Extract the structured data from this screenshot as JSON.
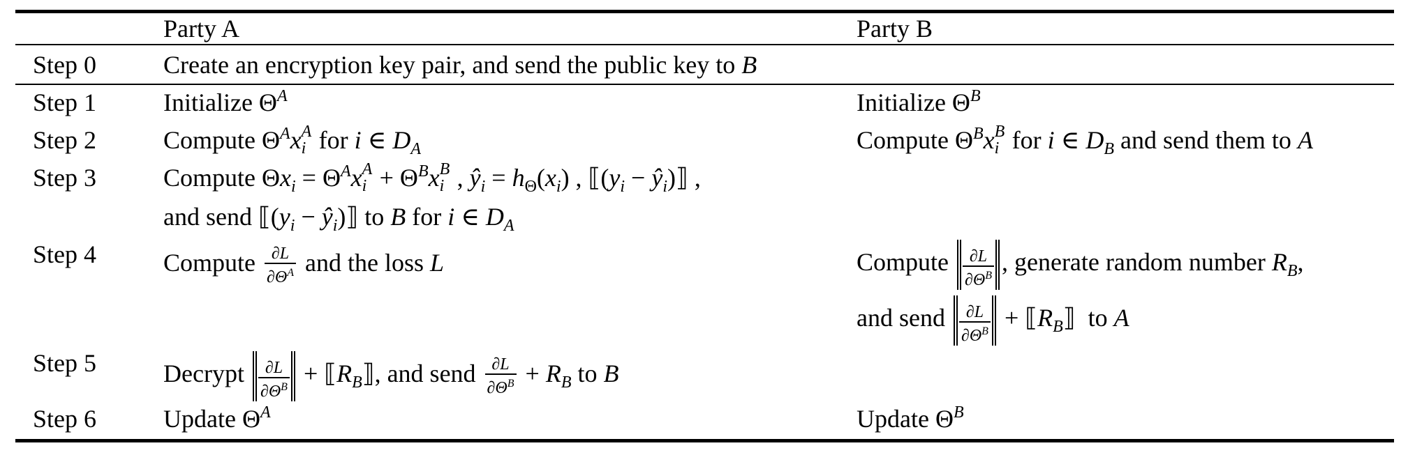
{
  "table": {
    "headers": {
      "party_a": "Party A",
      "party_b": "Party B"
    },
    "rows": [
      {
        "step": "Step 0",
        "party_a": "Create an encryption key pair, and send the public key to B",
        "party_b": ""
      },
      {
        "step": "Step 1",
        "party_a": "Initialize Θ^A",
        "party_b": "Initialize Θ^B"
      },
      {
        "step": "Step 2",
        "party_a": "Compute Θ^A x_i^A for i ∈ D_A",
        "party_b": "Compute Θ^B x_i^B for i ∈ D_B and send them to A"
      },
      {
        "step": "Step 3",
        "party_a": "Compute Θx_i = Θ^A x_i^A + Θ^B x_i^B, ŷ_i = h_Θ(x_i), ⟦(y_i − ŷ_i)⟧, and send ⟦(y_i − ŷ_i)⟧ to B for i ∈ D_A",
        "party_b": ""
      },
      {
        "step": "Step 4",
        "party_a": "Compute ∂L/∂Θ^A and the loss L",
        "party_b": "Compute ⟦∂L/∂Θ^B⟧, generate random number R_B, and send ⟦∂L/∂Θ^B⟧ + ⟦R_B⟧ to A"
      },
      {
        "step": "Step 5",
        "party_a": "Decrypt ⟦∂L/∂Θ^B⟧ + ⟦R_B⟧, and send ∂L/∂Θ^B + R_B to B",
        "party_b": ""
      },
      {
        "step": "Step 6",
        "party_a": "Update Θ^A",
        "party_b": "Update Θ^B"
      }
    ]
  },
  "fragments": {
    "step0": "Create an encryption key pair, and send the public key to ",
    "B": "B",
    "A": "A",
    "initialize": "Initialize Θ",
    "compute": "Compute ",
    "compute_theta": "Compute Θ",
    "for_i_in": " for ",
    "in_sym": " ∈ ",
    "and_send_them_to": " and send them to ",
    "and_send": "and send ",
    "to_B_for": " to B for ",
    "theta": "Θ",
    "plus": " + ",
    "eq": " = ",
    "comma": ", ",
    "yhat": "ŷ",
    "h": "h",
    "sum_theta_x": "Θx",
    "dL": "∂L",
    "dThetaA": "∂Θ",
    "and_the_loss": " and the loss ",
    "L": "L",
    "generate_random": ", generate random number ",
    "decrypt": "Decrypt ",
    "and_send_comma": ", and send ",
    "to": " to ",
    "update": "Update Θ",
    "R": "R"
  }
}
